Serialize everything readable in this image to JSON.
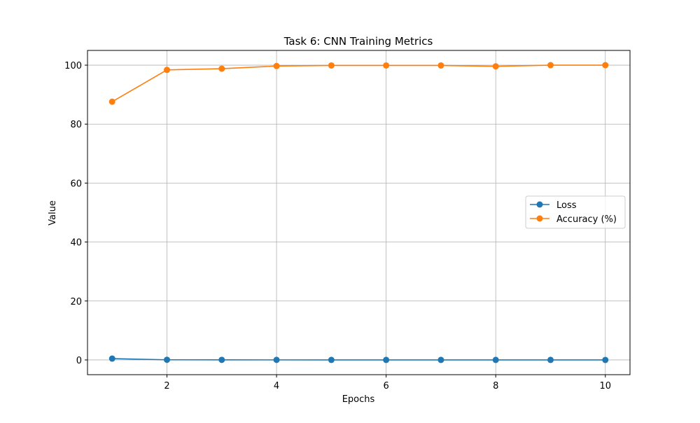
{
  "chart_data": {
    "type": "line",
    "title": "Task 6: CNN Training Metrics",
    "xlabel": "Epochs",
    "ylabel": "Value",
    "x": [
      1,
      2,
      3,
      4,
      5,
      6,
      7,
      8,
      9,
      10
    ],
    "xlim": [
      0.55,
      10.45
    ],
    "ylim": [
      -5,
      105
    ],
    "xticks": [
      2,
      4,
      6,
      8,
      10
    ],
    "yticks": [
      0,
      20,
      40,
      60,
      80,
      100
    ],
    "grid": true,
    "legend_position": "center-right",
    "series": [
      {
        "name": "Loss",
        "color": "#1f77b4",
        "marker": "circle",
        "values": [
          0.45,
          0.05,
          0.03,
          0.02,
          0.01,
          0.01,
          0.01,
          0.01,
          0.01,
          0.0
        ]
      },
      {
        "name": "Accuracy (%)",
        "color": "#ff7f0e",
        "marker": "circle",
        "values": [
          87.6,
          98.4,
          98.8,
          99.7,
          99.9,
          99.9,
          99.9,
          99.6,
          100.0,
          100.0
        ]
      }
    ]
  }
}
